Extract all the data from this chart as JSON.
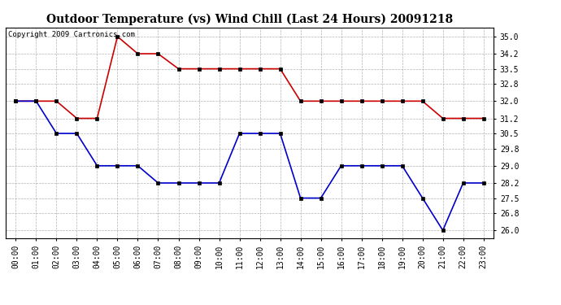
{
  "title": "Outdoor Temperature (vs) Wind Chill (Last 24 Hours) 20091218",
  "copyright": "Copyright 2009 Cartronics.com",
  "hours": [
    "00:00",
    "01:00",
    "02:00",
    "03:00",
    "04:00",
    "05:00",
    "06:00",
    "07:00",
    "08:00",
    "09:00",
    "10:00",
    "11:00",
    "12:00",
    "13:00",
    "14:00",
    "15:00",
    "16:00",
    "17:00",
    "18:00",
    "19:00",
    "20:00",
    "21:00",
    "22:00",
    "23:00"
  ],
  "temp": [
    32.0,
    32.0,
    32.0,
    31.2,
    31.2,
    35.0,
    34.2,
    34.2,
    33.5,
    33.5,
    33.5,
    33.5,
    33.5,
    33.5,
    32.0,
    32.0,
    32.0,
    32.0,
    32.0,
    32.0,
    32.0,
    31.2,
    31.2,
    31.2
  ],
  "wind_chill": [
    32.0,
    32.0,
    30.5,
    30.5,
    29.0,
    29.0,
    29.0,
    28.2,
    28.2,
    28.2,
    28.2,
    30.5,
    30.5,
    30.5,
    27.5,
    27.5,
    29.0,
    29.0,
    29.0,
    29.0,
    27.5,
    26.0,
    28.2,
    28.2
  ],
  "temp_color": "#cc0000",
  "wind_chill_color": "#0000cc",
  "ylim_min": 25.65,
  "ylim_max": 35.42,
  "yticks": [
    26.0,
    26.8,
    27.5,
    28.2,
    29.0,
    29.8,
    30.5,
    31.2,
    32.0,
    32.8,
    33.5,
    34.2,
    35.0
  ],
  "bg_color": "#ffffff",
  "grid_color": "#aaaaaa",
  "marker": "s",
  "marker_size": 2.5,
  "marker_color": "#000000",
  "line_width": 1.2,
  "title_fontsize": 10,
  "copyright_fontsize": 6.5,
  "tick_fontsize": 7
}
